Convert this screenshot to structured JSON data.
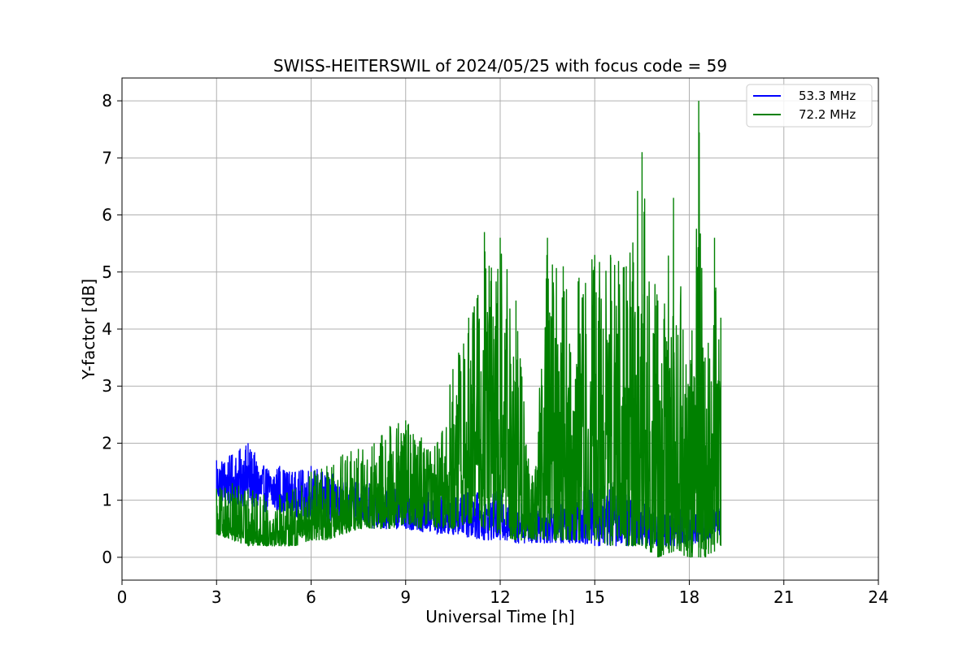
{
  "chart_data": {
    "type": "line",
    "title": "SWISS-HEITERSWIL of 2024/05/25 with focus code = 59",
    "xlabel": "Universal Time [h]",
    "ylabel": "Y-factor [dB]",
    "xlim": [
      0,
      24
    ],
    "ylim": [
      -0.4,
      8.4
    ],
    "xticks": [
      0,
      3,
      6,
      9,
      12,
      15,
      18,
      21,
      24
    ],
    "yticks": [
      0,
      1,
      2,
      3,
      4,
      5,
      6,
      7,
      8
    ],
    "grid": true,
    "legend": {
      "placement": "top-right"
    },
    "series": [
      {
        "name": "53.3 MHz",
        "color": "#0000ff",
        "envelope": [
          {
            "x": 3.0,
            "min": 1.0,
            "max": 1.7
          },
          {
            "x": 3.5,
            "min": 0.9,
            "max": 1.8
          },
          {
            "x": 4.0,
            "min": 0.9,
            "max": 2.0
          },
          {
            "x": 4.5,
            "min": 0.8,
            "max": 1.6
          },
          {
            "x": 5.0,
            "min": 0.8,
            "max": 1.6
          },
          {
            "x": 5.5,
            "min": 0.7,
            "max": 1.5
          },
          {
            "x": 6.0,
            "min": 0.7,
            "max": 1.6
          },
          {
            "x": 6.5,
            "min": 0.6,
            "max": 1.5
          },
          {
            "x": 7.0,
            "min": 0.6,
            "max": 1.4
          },
          {
            "x": 7.5,
            "min": 0.6,
            "max": 1.3
          },
          {
            "x": 8.0,
            "min": 0.5,
            "max": 1.3
          },
          {
            "x": 8.5,
            "min": 0.5,
            "max": 1.3
          },
          {
            "x": 9.0,
            "min": 0.5,
            "max": 1.2
          },
          {
            "x": 9.5,
            "min": 0.45,
            "max": 1.2
          },
          {
            "x": 10.0,
            "min": 0.4,
            "max": 1.1
          },
          {
            "x": 10.5,
            "min": 0.4,
            "max": 1.0
          },
          {
            "x": 11.0,
            "min": 0.35,
            "max": 1.3
          },
          {
            "x": 11.5,
            "min": 0.3,
            "max": 1.0
          },
          {
            "x": 12.0,
            "min": 0.3,
            "max": 1.2
          },
          {
            "x": 12.5,
            "min": 0.25,
            "max": 1.0
          },
          {
            "x": 13.0,
            "min": 0.25,
            "max": 1.0
          },
          {
            "x": 13.5,
            "min": 0.25,
            "max": 0.9
          },
          {
            "x": 14.0,
            "min": 0.25,
            "max": 1.0
          },
          {
            "x": 14.5,
            "min": 0.25,
            "max": 1.2
          },
          {
            "x": 15.0,
            "min": 0.2,
            "max": 1.2
          },
          {
            "x": 15.5,
            "min": 0.2,
            "max": 1.3
          },
          {
            "x": 16.0,
            "min": 0.2,
            "max": 1.1
          },
          {
            "x": 16.5,
            "min": 0.2,
            "max": 1.0
          },
          {
            "x": 17.0,
            "min": 0.2,
            "max": 0.8
          },
          {
            "x": 17.5,
            "min": 0.2,
            "max": 0.8
          },
          {
            "x": 18.0,
            "min": 0.2,
            "max": 0.9
          },
          {
            "x": 18.5,
            "min": 0.3,
            "max": 0.8
          },
          {
            "x": 19.0,
            "min": 0.4,
            "max": 0.9
          }
        ]
      },
      {
        "name": "72.2 MHz",
        "color": "#008000",
        "envelope": [
          {
            "x": 3.0,
            "min": 0.4,
            "max": 1.2
          },
          {
            "x": 3.5,
            "min": 0.3,
            "max": 1.3
          },
          {
            "x": 4.0,
            "min": 0.2,
            "max": 1.2
          },
          {
            "x": 4.5,
            "min": 0.2,
            "max": 1.1
          },
          {
            "x": 5.0,
            "min": 0.2,
            "max": 1.1
          },
          {
            "x": 5.5,
            "min": 0.2,
            "max": 1.2
          },
          {
            "x": 6.0,
            "min": 0.3,
            "max": 1.5
          },
          {
            "x": 6.5,
            "min": 0.3,
            "max": 1.6
          },
          {
            "x": 7.0,
            "min": 0.4,
            "max": 1.8
          },
          {
            "x": 7.5,
            "min": 0.5,
            "max": 1.9
          },
          {
            "x": 8.0,
            "min": 0.5,
            "max": 2.0
          },
          {
            "x": 8.5,
            "min": 0.5,
            "max": 2.3
          },
          {
            "x": 9.0,
            "min": 0.6,
            "max": 2.4
          },
          {
            "x": 9.5,
            "min": 0.5,
            "max": 2.1
          },
          {
            "x": 10.0,
            "min": 0.5,
            "max": 2.0
          },
          {
            "x": 10.5,
            "min": 0.5,
            "max": 3.3
          },
          {
            "x": 11.0,
            "min": 0.6,
            "max": 4.2
          },
          {
            "x": 11.5,
            "min": 0.5,
            "max": 5.7
          },
          {
            "x": 12.0,
            "min": 0.4,
            "max": 5.6
          },
          {
            "x": 12.5,
            "min": 0.3,
            "max": 4.5
          },
          {
            "x": 13.0,
            "min": 0.3,
            "max": 1.3
          },
          {
            "x": 13.5,
            "min": 0.3,
            "max": 5.6
          },
          {
            "x": 14.0,
            "min": 0.3,
            "max": 5.1
          },
          {
            "x": 14.5,
            "min": 0.3,
            "max": 4.9
          },
          {
            "x": 15.0,
            "min": 0.3,
            "max": 5.3
          },
          {
            "x": 15.5,
            "min": 0.2,
            "max": 5.3
          },
          {
            "x": 16.0,
            "min": 0.2,
            "max": 5.1
          },
          {
            "x": 16.5,
            "min": 0.2,
            "max": 7.1
          },
          {
            "x": 17.0,
            "min": 0.0,
            "max": 4.5
          },
          {
            "x": 17.5,
            "min": 0.1,
            "max": 6.3
          },
          {
            "x": 18.0,
            "min": 0.0,
            "max": 3.0
          },
          {
            "x": 18.3,
            "min": 0.0,
            "max": 8.0
          },
          {
            "x": 18.5,
            "min": 0.0,
            "max": 3.5
          },
          {
            "x": 18.8,
            "min": 0.1,
            "max": 5.6
          },
          {
            "x": 19.0,
            "min": 0.2,
            "max": 4.2
          }
        ]
      }
    ]
  }
}
